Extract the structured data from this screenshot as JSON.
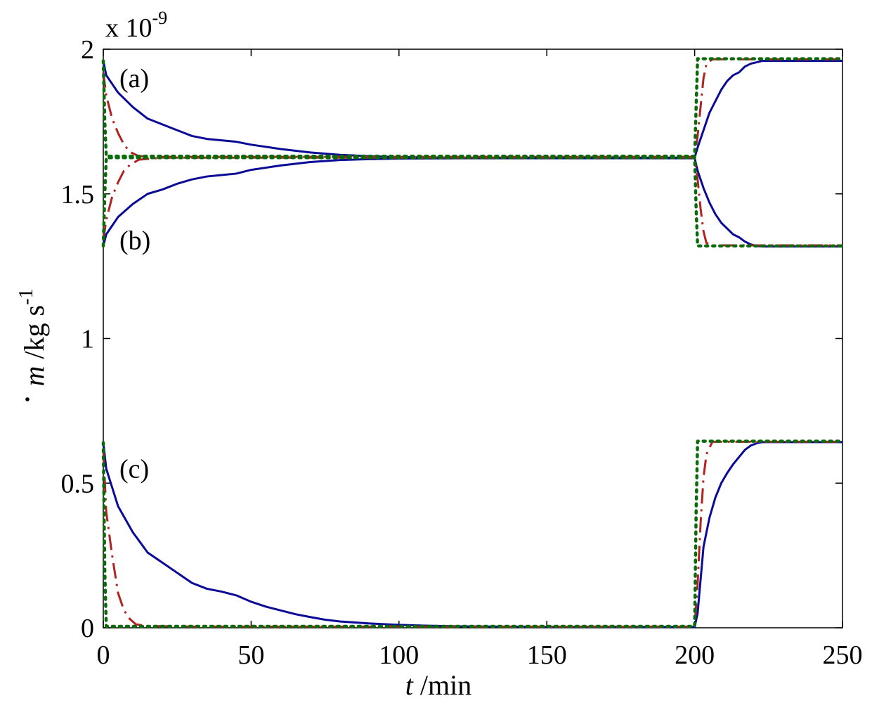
{
  "chart_data": {
    "type": "line",
    "title": "",
    "xlabel": {
      "italic": "t",
      "unit": " /min"
    },
    "ylabel": {
      "symbol": "m",
      "unit": " /kg s",
      "exponent": "-1"
    },
    "y_multiplier": {
      "base": "x 10",
      "exponent": "-9"
    },
    "xlim": [
      0,
      250
    ],
    "ylim": [
      0,
      2
    ],
    "xticks": [
      0,
      50,
      100,
      150,
      200,
      250
    ],
    "yticks": [
      0,
      0.5,
      1,
      1.5,
      2
    ],
    "xtick_labels": [
      "0",
      "50",
      "100",
      "150",
      "200",
      "250"
    ],
    "ytick_labels": [
      "0",
      "0.5",
      "1",
      "1.5",
      "2"
    ],
    "grid": false,
    "legend": "none",
    "annotations": [
      {
        "text": "(a)",
        "x": 5,
        "y": 1.9
      },
      {
        "text": "(b)",
        "x": 5,
        "y": 1.34
      },
      {
        "text": "(c)",
        "x": 5,
        "y": 0.55
      }
    ],
    "series": [
      {
        "group": "a",
        "style": "solid",
        "color": "#0a0a96",
        "x": [
          0,
          1,
          5,
          10,
          15,
          20,
          25,
          30,
          35,
          40,
          45,
          50,
          60,
          70,
          80,
          90,
          100,
          120,
          150,
          200,
          201,
          203,
          205,
          207,
          209,
          211,
          213,
          215,
          217,
          219,
          221,
          223,
          225,
          250
        ],
        "y": [
          1.96,
          1.91,
          1.85,
          1.8,
          1.76,
          1.74,
          1.72,
          1.7,
          1.69,
          1.685,
          1.68,
          1.67,
          1.655,
          1.643,
          1.635,
          1.63,
          1.627,
          1.625,
          1.625,
          1.625,
          1.66,
          1.72,
          1.78,
          1.82,
          1.86,
          1.89,
          1.91,
          1.92,
          1.94,
          1.95,
          1.955,
          1.96,
          1.96,
          1.96
        ]
      },
      {
        "group": "a",
        "style": "dashdot",
        "color": "#b22222",
        "x": [
          0,
          1,
          3,
          5,
          7,
          9,
          12,
          20,
          50,
          200,
          201,
          202,
          203,
          204,
          206,
          250
        ],
        "y": [
          1.92,
          1.84,
          1.76,
          1.71,
          1.67,
          1.645,
          1.63,
          1.628,
          1.628,
          1.628,
          1.7,
          1.8,
          1.9,
          1.95,
          1.965,
          1.965
        ]
      },
      {
        "group": "a",
        "style": "dotted",
        "color": "#0b6b0b",
        "x": [
          0,
          0.5,
          1,
          200,
          200.5,
          201,
          250
        ],
        "y": [
          1.96,
          1.75,
          1.63,
          1.63,
          1.8,
          1.967,
          1.967
        ]
      },
      {
        "group": "b",
        "style": "solid",
        "color": "#0a0a96",
        "x": [
          0,
          1,
          5,
          10,
          15,
          20,
          25,
          30,
          35,
          40,
          45,
          50,
          60,
          70,
          80,
          90,
          100,
          120,
          150,
          200,
          201,
          203,
          205,
          207,
          209,
          211,
          213,
          215,
          217,
          219,
          221,
          223,
          225,
          250
        ],
        "y": [
          1.32,
          1.36,
          1.42,
          1.465,
          1.5,
          1.515,
          1.535,
          1.55,
          1.56,
          1.565,
          1.57,
          1.583,
          1.598,
          1.61,
          1.617,
          1.62,
          1.622,
          1.623,
          1.623,
          1.623,
          1.58,
          1.52,
          1.47,
          1.43,
          1.4,
          1.38,
          1.36,
          1.35,
          1.335,
          1.325,
          1.32,
          1.318,
          1.318,
          1.318
        ]
      },
      {
        "group": "b",
        "style": "dashdot",
        "color": "#b22222",
        "x": [
          0,
          1,
          3,
          5,
          7,
          9,
          12,
          20,
          50,
          200,
          201,
          202,
          203,
          204,
          206,
          250
        ],
        "y": [
          1.34,
          1.41,
          1.49,
          1.54,
          1.58,
          1.6,
          1.618,
          1.625,
          1.625,
          1.625,
          1.55,
          1.45,
          1.37,
          1.33,
          1.322,
          1.322
        ]
      },
      {
        "group": "b",
        "style": "dotted",
        "color": "#0b6b0b",
        "x": [
          0,
          0.5,
          1,
          200,
          200.5,
          201,
          250
        ],
        "y": [
          1.32,
          1.5,
          1.625,
          1.625,
          1.45,
          1.32,
          1.32
        ]
      },
      {
        "group": "c",
        "style": "solid",
        "color": "#0a0a96",
        "x": [
          0,
          1,
          5,
          10,
          15,
          20,
          25,
          30,
          35,
          40,
          45,
          50,
          55,
          60,
          65,
          70,
          75,
          80,
          90,
          100,
          110,
          120,
          150,
          200,
          201,
          203,
          205,
          207,
          209,
          211,
          213,
          215,
          217,
          219,
          221,
          223,
          225,
          250
        ],
        "y": [
          0.64,
          0.55,
          0.42,
          0.33,
          0.26,
          0.225,
          0.19,
          0.155,
          0.135,
          0.125,
          0.112,
          0.09,
          0.073,
          0.06,
          0.047,
          0.037,
          0.028,
          0.022,
          0.015,
          0.01,
          0.007,
          0.005,
          0.003,
          0.003,
          0.05,
          0.28,
          0.38,
          0.45,
          0.5,
          0.535,
          0.565,
          0.59,
          0.615,
          0.63,
          0.638,
          0.642,
          0.642,
          0.642
        ]
      },
      {
        "group": "c",
        "style": "dashdot",
        "color": "#b22222",
        "x": [
          0,
          1,
          3,
          5,
          7,
          9,
          11,
          15,
          30,
          200,
          201,
          202,
          203,
          204,
          206,
          250
        ],
        "y": [
          0.62,
          0.4,
          0.25,
          0.12,
          0.06,
          0.03,
          0.012,
          0.006,
          0.004,
          0.004,
          0.15,
          0.36,
          0.52,
          0.6,
          0.643,
          0.643
        ]
      },
      {
        "group": "c",
        "style": "dotted",
        "color": "#0b6b0b",
        "x": [
          0,
          0.5,
          1,
          200,
          200.5,
          201,
          250
        ],
        "y": [
          0.64,
          0.2,
          0.005,
          0.005,
          0.4,
          0.645,
          0.645
        ]
      }
    ]
  }
}
